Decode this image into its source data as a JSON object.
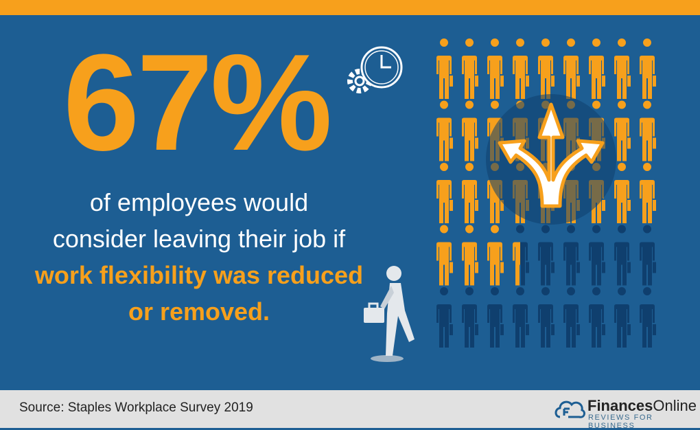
{
  "headline": {
    "percent": "67%"
  },
  "description": {
    "line1": "of employees would",
    "line2": "consider leaving their job if",
    "highlight1": "work flexibility was reduced",
    "highlight2": "or removed."
  },
  "pictogram": {
    "total": 45,
    "columns": 9,
    "highlighted_fraction": 0.67,
    "highlight_color": "#f7a01c",
    "base_color": "#0f3f6e"
  },
  "footer": {
    "source": "Source: Staples Workplace Survey 2019"
  },
  "logo": {
    "name_bold": "Finances",
    "name_regular": "Online",
    "tagline": "REVIEWS FOR BUSINESS"
  },
  "colors": {
    "orange": "#f7a01c",
    "blue": "#1d5e93",
    "footer_bg": "#e1e1e1"
  },
  "icons": [
    "clock-gear-icon",
    "person-icon",
    "fork-arrows-icon",
    "walking-businessman-icon",
    "cloud-logo-icon"
  ]
}
